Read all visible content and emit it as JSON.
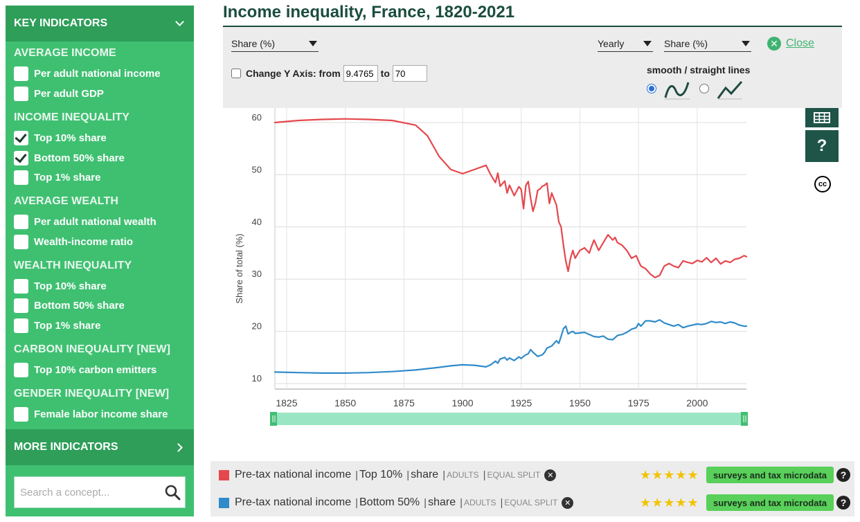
{
  "sidebar": {
    "header": "KEY INDICATORS",
    "sections": [
      {
        "title": "AVERAGE INCOME",
        "items": [
          {
            "label": "Per adult national income",
            "checked": false
          },
          {
            "label": "Per adult GDP",
            "checked": false
          }
        ]
      },
      {
        "title": "INCOME INEQUALITY",
        "items": [
          {
            "label": "Top 10% share",
            "checked": true
          },
          {
            "label": "Bottom 50% share",
            "checked": true
          },
          {
            "label": "Top 1% share",
            "checked": false
          }
        ]
      },
      {
        "title": "AVERAGE WEALTH",
        "items": [
          {
            "label": "Per adult national wealth",
            "checked": false
          },
          {
            "label": "Wealth-income ratio",
            "checked": false
          }
        ]
      },
      {
        "title": "WEALTH INEQUALITY",
        "items": [
          {
            "label": "Top 10% share",
            "checked": false
          },
          {
            "label": "Bottom 50% share",
            "checked": false
          },
          {
            "label": "Top 1% share",
            "checked": false
          }
        ]
      },
      {
        "title": "CARBON INEQUALITY [NEW]",
        "items": [
          {
            "label": "Top 10% carbon emitters",
            "checked": false
          }
        ]
      },
      {
        "title": "GENDER INEQUALITY [NEW]",
        "items": [
          {
            "label": "Female labor income share",
            "checked": false
          }
        ]
      }
    ],
    "more_indicators": "MORE INDICATORS",
    "search_placeholder": "Search a concept..."
  },
  "title": "Income inequality, France, 1820-2021",
  "controls": {
    "metric_select": "Share (%)",
    "frequency_select": "Yearly",
    "unit_select": "Share (%)",
    "close_label": "Close",
    "change_y_label": "Change Y Axis: from",
    "y_from": "9.4765",
    "to_label": "to",
    "y_to": "70",
    "smooth_label": "smooth / straight lines",
    "smooth_selected": true
  },
  "icons": {
    "table": "table-grid-icon",
    "help": "question-mark-icon",
    "license": "creative-commons-icon"
  },
  "side": {
    "help_glyph": "?",
    "cc_glyph": "cc"
  },
  "chart_data": {
    "type": "line",
    "ylabel": "Share of total (%)",
    "x_ticks": [
      1825,
      1850,
      1875,
      1900,
      1925,
      1950,
      1975,
      2000
    ],
    "y_ticks": [
      10,
      20,
      30,
      40,
      50,
      60
    ],
    "xlim": [
      1820,
      2021
    ],
    "ylim": [
      9.4765,
      62
    ],
    "grid": true,
    "series": [
      {
        "name": "Top 10%",
        "color": "#e5474d",
        "x": [
          1820,
          1830,
          1840,
          1850,
          1860,
          1870,
          1880,
          1885,
          1890,
          1895,
          1900,
          1905,
          1910,
          1912,
          1914,
          1915,
          1916,
          1918,
          1919,
          1920,
          1922,
          1924,
          1925,
          1926,
          1927,
          1928,
          1929,
          1930,
          1931,
          1932,
          1933,
          1934,
          1935,
          1936,
          1937,
          1938,
          1940,
          1941,
          1942,
          1943,
          1944,
          1945,
          1946,
          1947,
          1948,
          1950,
          1952,
          1954,
          1955,
          1956,
          1958,
          1960,
          1962,
          1964,
          1965,
          1966,
          1968,
          1970,
          1972,
          1974,
          1975,
          1976,
          1978,
          1980,
          1982,
          1984,
          1986,
          1988,
          1990,
          1992,
          1994,
          1996,
          1998,
          2000,
          2002,
          2004,
          2006,
          2008,
          2010,
          2012,
          2014,
          2016,
          2018,
          2020,
          2021
        ],
        "y": [
          60.0,
          60.4,
          60.6,
          60.7,
          60.6,
          60.4,
          59.5,
          57.5,
          53.5,
          51.0,
          50.2,
          51.0,
          51.8,
          50.0,
          48.5,
          50.3,
          47.8,
          48.8,
          46.5,
          48.0,
          46.0,
          47.7,
          47.2,
          43.5,
          48.0,
          48.7,
          45.5,
          43.0,
          44.5,
          47.0,
          47.3,
          47.8,
          48.0,
          48.4,
          44.5,
          46.5,
          44.2,
          41.0,
          40.0,
          36.5,
          33.5,
          31.5,
          34.0,
          35.5,
          34.0,
          35.5,
          36.0,
          35.0,
          36.3,
          37.5,
          35.5,
          37.0,
          38.5,
          37.5,
          38.0,
          37.0,
          36.5,
          35.5,
          34.0,
          34.5,
          33.5,
          32.5,
          32.0,
          31.0,
          30.3,
          30.7,
          32.5,
          33.0,
          32.5,
          32.2,
          33.5,
          33.2,
          33.0,
          33.6,
          33.3,
          34.1,
          33.2,
          34.0,
          32.9,
          33.5,
          33.2,
          33.8,
          34.0,
          34.5,
          34.3
        ]
      },
      {
        "name": "Bottom 50%",
        "color": "#2f8bc9",
        "x": [
          1820,
          1830,
          1840,
          1850,
          1860,
          1870,
          1880,
          1890,
          1895,
          1900,
          1905,
          1910,
          1912,
          1914,
          1915,
          1916,
          1918,
          1919,
          1920,
          1922,
          1924,
          1925,
          1926,
          1927,
          1928,
          1929,
          1930,
          1932,
          1934,
          1935,
          1936,
          1937,
          1938,
          1940,
          1941,
          1942,
          1943,
          1944,
          1945,
          1946,
          1947,
          1948,
          1950,
          1952,
          1954,
          1956,
          1958,
          1960,
          1962,
          1964,
          1966,
          1968,
          1970,
          1972,
          1974,
          1975,
          1976,
          1978,
          1980,
          1982,
          1984,
          1986,
          1988,
          1990,
          1992,
          1994,
          1996,
          1998,
          2000,
          2002,
          2004,
          2006,
          2008,
          2010,
          2012,
          2014,
          2016,
          2018,
          2020,
          2021
        ],
        "y": [
          12.2,
          12.1,
          12.0,
          12.0,
          12.1,
          12.3,
          12.6,
          13.1,
          13.4,
          13.6,
          13.5,
          13.2,
          13.6,
          14.3,
          13.9,
          14.7,
          15.0,
          14.5,
          14.9,
          14.4,
          15.1,
          14.8,
          15.2,
          15.5,
          15.7,
          16.5,
          16.0,
          15.2,
          15.5,
          16.0,
          16.8,
          17.0,
          17.2,
          18.2,
          17.7,
          19.0,
          20.5,
          21.0,
          19.5,
          19.8,
          20.0,
          19.6,
          19.7,
          19.8,
          19.4,
          19.0,
          18.9,
          19.1,
          18.5,
          18.4,
          19.2,
          19.4,
          19.8,
          20.4,
          20.7,
          21.5,
          21.0,
          22.0,
          22.0,
          21.8,
          22.2,
          21.6,
          21.3,
          21.0,
          21.3,
          20.7,
          21.0,
          21.2,
          21.4,
          21.3,
          21.5,
          21.9,
          21.7,
          21.8,
          21.5,
          21.8,
          21.6,
          21.2,
          21.0,
          21.0
        ]
      }
    ]
  },
  "legend_rows": [
    {
      "color": "#e5474d",
      "concept": "Pre-tax national income",
      "group": "Top 10%",
      "measure": "share",
      "pop": "ADULTS",
      "unit": "EQUAL SPLIT",
      "stars": "★★★★★",
      "source": "surveys and tax microdata"
    },
    {
      "color": "#2f8bc9",
      "concept": "Pre-tax national income",
      "group": "Bottom 50%",
      "measure": "share",
      "pop": "ADULTS",
      "unit": "EQUAL SPLIT",
      "stars": "★★★★★",
      "source": "surveys and tax microdata"
    }
  ]
}
